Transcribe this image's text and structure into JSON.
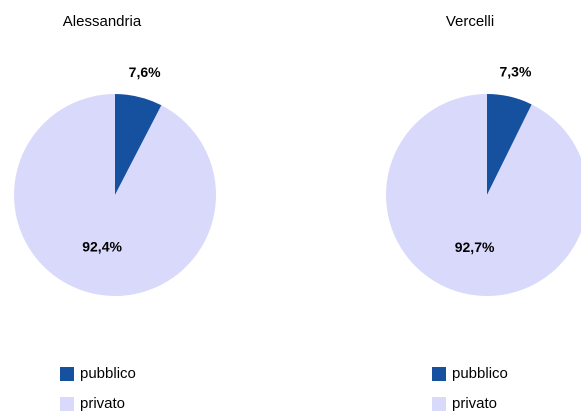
{
  "chart_data": [
    {
      "type": "pie",
      "title": "Alessandria",
      "categories": [
        "pubblico",
        "privato"
      ],
      "values": [
        7.6,
        92.4
      ],
      "value_labels": [
        "7,6%",
        "92,4%"
      ],
      "colors": [
        "#1651a0",
        "#d9d9fb"
      ]
    },
    {
      "type": "pie",
      "title": "Vercelli",
      "categories": [
        "pubblico",
        "privato"
      ],
      "values": [
        7.3,
        92.7
      ],
      "value_labels": [
        "7,3%",
        "92,7%"
      ],
      "colors": [
        "#1651a0",
        "#d9d9fb"
      ]
    }
  ]
}
